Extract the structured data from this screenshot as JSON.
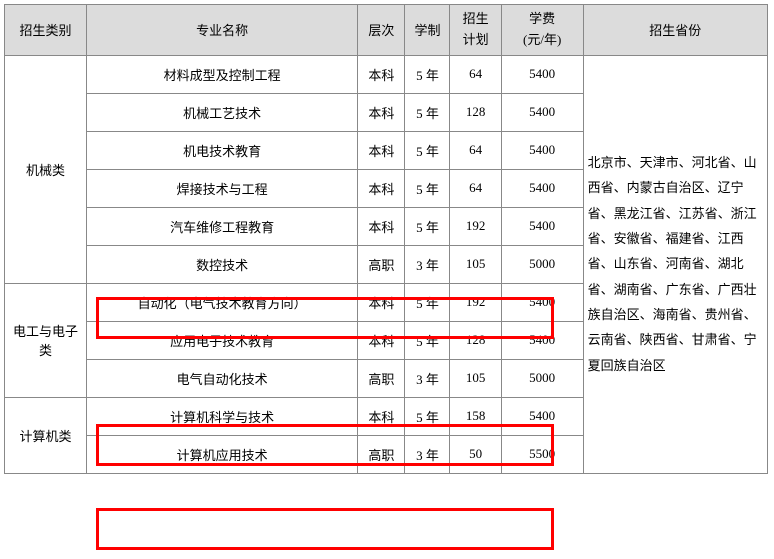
{
  "table": {
    "headers": {
      "category": "招生类别",
      "major": "专业名称",
      "level": "层次",
      "years": "学制",
      "plan_line1": "招生",
      "plan_line2": "计划",
      "fee_line1": "学费",
      "fee_line2": "(元/年)",
      "provinces": "招生省份"
    },
    "categories": [
      {
        "name": "机械类",
        "rows": [
          0,
          1,
          2,
          3,
          4,
          5
        ]
      },
      {
        "name": "电工与电子类",
        "rows": [
          6,
          7,
          8
        ]
      },
      {
        "name": "计算机类",
        "rows": [
          9,
          10
        ]
      }
    ],
    "rows": [
      {
        "major": "材料成型及控制工程",
        "level": "本科",
        "years": "5 年",
        "plan": "64",
        "fee": "5400"
      },
      {
        "major": "机械工艺技术",
        "level": "本科",
        "years": "5 年",
        "plan": "128",
        "fee": "5400"
      },
      {
        "major": "机电技术教育",
        "level": "本科",
        "years": "5 年",
        "plan": "64",
        "fee": "5400"
      },
      {
        "major": "焊接技术与工程",
        "level": "本科",
        "years": "5 年",
        "plan": "64",
        "fee": "5400"
      },
      {
        "major": "汽车维修工程教育",
        "level": "本科",
        "years": "5 年",
        "plan": "192",
        "fee": "5400"
      },
      {
        "major": "数控技术",
        "level": "高职",
        "years": "3 年",
        "plan": "105",
        "fee": "5000"
      },
      {
        "major": "自动化（电气技术教育方向）",
        "level": "本科",
        "years": "5 年",
        "plan": "192",
        "fee": "5400"
      },
      {
        "major": "应用电子技术教育",
        "level": "本科",
        "years": "5 年",
        "plan": "128",
        "fee": "5400"
      },
      {
        "major": "电气自动化技术",
        "level": "高职",
        "years": "3 年",
        "plan": "105",
        "fee": "5000"
      },
      {
        "major": "计算机科学与技术",
        "level": "本科",
        "years": "5 年",
        "plan": "158",
        "fee": "5400"
      },
      {
        "major": "计算机应用技术",
        "level": "高职",
        "years": "3 年",
        "plan": "50",
        "fee": "5500"
      }
    ],
    "provinces_text": "北京市、天津市、河北省、山西省、内蒙古自治区、辽宁省、黑龙江省、江苏省、浙江省、安徽省、福建省、江西省、山东省、河南省、湖北省、湖南省、广东省、广西壮族自治区、海南省、贵州省、云南省、陕西省、甘肃省、宁夏回族自治区",
    "highlights": [
      5,
      8,
      10
    ],
    "colors": {
      "border": "#888888",
      "header_bg": "#dcdcdc",
      "highlight_border": "#ff0000",
      "text": "#000000",
      "background": "#ffffff"
    },
    "font_family": "SimSun",
    "font_size_pt": 10
  }
}
